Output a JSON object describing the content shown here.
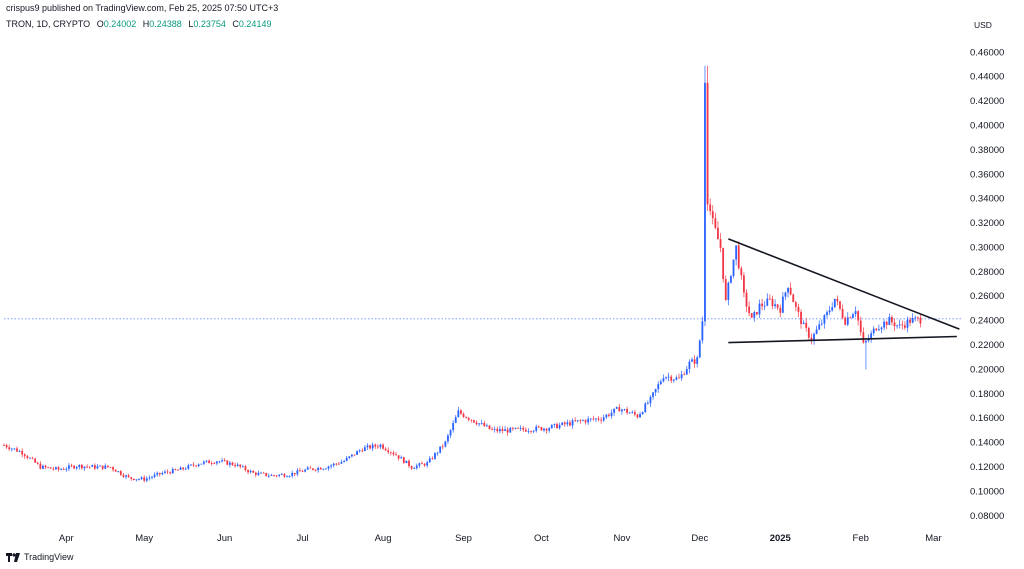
{
  "header": {
    "published": "crispus9 published on TradingView.com, Feb 25, 2025 07:50 UTC+3",
    "symbol": "TRON, 1D, CRYPTO",
    "open_label": "O",
    "open": "0.24002",
    "high_label": "H",
    "high": "0.24388",
    "low_label": "L",
    "low": "0.23754",
    "close_label": "C",
    "close": "0.24149",
    "currency": "USD"
  },
  "brand": {
    "name": "TradingView"
  },
  "colors": {
    "up": "#2962ff",
    "down": "#f23645",
    "line": "#131722",
    "last_price": "#2962ff"
  },
  "chart_data": {
    "type": "candlestick",
    "ylim": [
      0.07,
      0.475
    ],
    "y_ticks": [
      "0.08000",
      "0.10000",
      "0.12000",
      "0.14000",
      "0.16000",
      "0.18000",
      "0.20000",
      "0.22000",
      "0.24000",
      "0.26000",
      "0.28000",
      "0.30000",
      "0.32000",
      "0.34000",
      "0.36000",
      "0.38000",
      "0.40000",
      "0.42000",
      "0.44000",
      "0.46000"
    ],
    "x_start": "2024-03-08",
    "x_end": "2025-03-12",
    "x_ticks": [
      {
        "label": "Apr",
        "date": "2024-04-01",
        "bold": false
      },
      {
        "label": "May",
        "date": "2024-05-01",
        "bold": false
      },
      {
        "label": "Jun",
        "date": "2024-06-01",
        "bold": false
      },
      {
        "label": "Jul",
        "date": "2024-07-01",
        "bold": false
      },
      {
        "label": "Aug",
        "date": "2024-08-01",
        "bold": false
      },
      {
        "label": "Sep",
        "date": "2024-09-01",
        "bold": false
      },
      {
        "label": "Oct",
        "date": "2024-10-01",
        "bold": false
      },
      {
        "label": "Nov",
        "date": "2024-11-01",
        "bold": false
      },
      {
        "label": "Dec",
        "date": "2024-12-01",
        "bold": false
      },
      {
        "label": "2025",
        "date": "2025-01-01",
        "bold": true
      },
      {
        "label": "Feb",
        "date": "2025-02-01",
        "bold": false
      },
      {
        "label": "Mar",
        "date": "2025-03-01",
        "bold": false
      }
    ],
    "last_price": 0.2415,
    "anchors": [
      [
        "2024-03-08",
        0.138
      ],
      [
        "2024-03-15",
        0.132
      ],
      [
        "2024-03-22",
        0.12
      ],
      [
        "2024-03-29",
        0.118
      ],
      [
        "2024-04-05",
        0.121
      ],
      [
        "2024-04-12",
        0.12
      ],
      [
        "2024-04-18",
        0.12
      ],
      [
        "2024-04-25",
        0.111
      ],
      [
        "2024-05-01",
        0.11
      ],
      [
        "2024-05-08",
        0.115
      ],
      [
        "2024-05-15",
        0.118
      ],
      [
        "2024-05-22",
        0.123
      ],
      [
        "2024-05-29",
        0.125
      ],
      [
        "2024-06-05",
        0.122
      ],
      [
        "2024-06-12",
        0.115
      ],
      [
        "2024-06-19",
        0.113
      ],
      [
        "2024-06-26",
        0.114
      ],
      [
        "2024-07-03",
        0.118
      ],
      [
        "2024-07-10",
        0.12
      ],
      [
        "2024-07-17",
        0.125
      ],
      [
        "2024-07-24",
        0.135
      ],
      [
        "2024-07-31",
        0.138
      ],
      [
        "2024-08-06",
        0.13
      ],
      [
        "2024-08-12",
        0.12
      ],
      [
        "2024-08-18",
        0.123
      ],
      [
        "2024-08-25",
        0.14
      ],
      [
        "2024-08-30",
        0.165
      ],
      [
        "2024-09-05",
        0.158
      ],
      [
        "2024-09-12",
        0.15
      ],
      [
        "2024-09-19",
        0.15
      ],
      [
        "2024-09-26",
        0.151
      ],
      [
        "2024-10-03",
        0.152
      ],
      [
        "2024-10-10",
        0.155
      ],
      [
        "2024-10-17",
        0.158
      ],
      [
        "2024-10-24",
        0.16
      ],
      [
        "2024-10-31",
        0.168
      ],
      [
        "2024-11-07",
        0.162
      ],
      [
        "2024-11-12",
        0.175
      ],
      [
        "2024-11-17",
        0.195
      ],
      [
        "2024-11-23",
        0.192
      ],
      [
        "2024-11-27",
        0.205
      ],
      [
        "2024-11-30",
        0.208
      ],
      [
        "2024-12-02",
        0.24
      ],
      [
        "2024-12-03",
        0.44
      ],
      [
        "2024-12-04",
        0.34
      ],
      [
        "2024-12-06",
        0.32
      ],
      [
        "2024-12-09",
        0.3
      ],
      [
        "2024-12-11",
        0.255
      ],
      [
        "2024-12-13",
        0.28
      ],
      [
        "2024-12-15",
        0.3
      ],
      [
        "2024-12-18",
        0.26
      ],
      [
        "2024-12-21",
        0.24
      ],
      [
        "2024-12-24",
        0.252
      ],
      [
        "2024-12-28",
        0.256
      ],
      [
        "2025-01-01",
        0.25
      ],
      [
        "2025-01-04",
        0.27
      ],
      [
        "2025-01-07",
        0.25
      ],
      [
        "2025-01-10",
        0.235
      ],
      [
        "2025-01-13",
        0.225
      ],
      [
        "2025-01-16",
        0.235
      ],
      [
        "2025-01-19",
        0.245
      ],
      [
        "2025-01-22",
        0.258
      ],
      [
        "2025-01-26",
        0.24
      ],
      [
        "2025-01-30",
        0.25
      ],
      [
        "2025-02-02",
        0.22
      ],
      [
        "2025-02-04",
        0.225
      ],
      [
        "2025-02-07",
        0.235
      ],
      [
        "2025-02-12",
        0.24
      ],
      [
        "2025-02-16",
        0.235
      ],
      [
        "2025-02-20",
        0.24
      ],
      [
        "2025-02-24",
        0.241
      ]
    ],
    "trendlines": [
      {
        "name": "resistance",
        "from": [
          "2024-12-12",
          0.307
        ],
        "to": [
          "2025-03-11",
          0.233
        ]
      },
      {
        "name": "support",
        "from": [
          "2024-12-12",
          0.222
        ],
        "to": [
          "2025-03-10",
          0.227
        ]
      }
    ]
  }
}
